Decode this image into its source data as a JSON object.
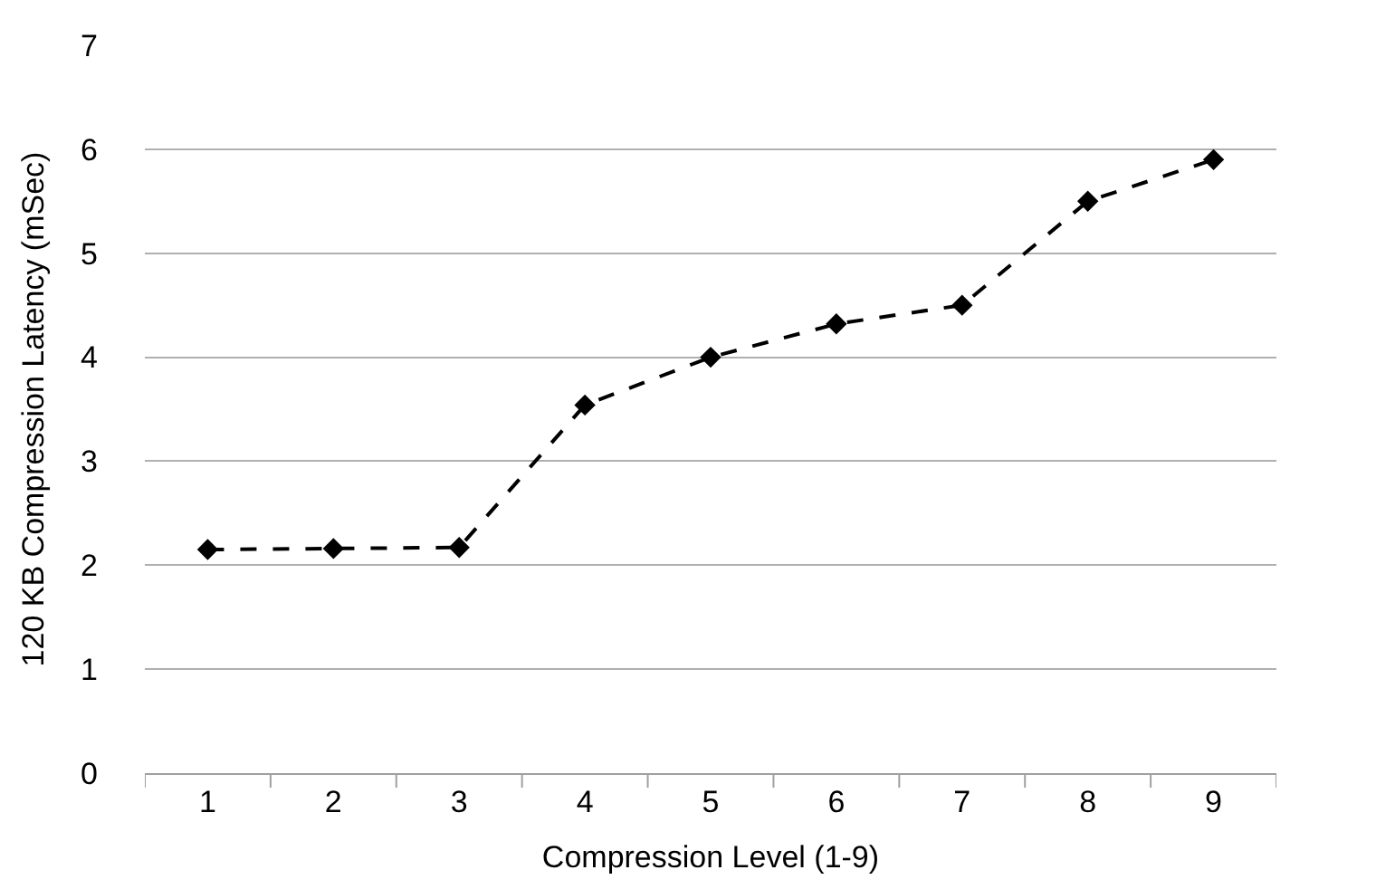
{
  "chart_data": {
    "type": "line",
    "xlabel": "Compression Level (1-9)",
    "ylabel": "120 KB Compression Latency (mSec)",
    "categories": [
      "1",
      "2",
      "3",
      "4",
      "5",
      "6",
      "7",
      "8",
      "9"
    ],
    "series": [
      {
        "color": "#000000",
        "values": [
          2.15,
          2.16,
          2.17,
          3.54,
          4.0,
          4.32,
          4.5,
          5.5,
          5.9
        ]
      }
    ],
    "ylim": [
      0,
      7
    ],
    "yticks": [
      0,
      1,
      2,
      3,
      4,
      5,
      6,
      7
    ],
    "grid": "y",
    "marker": "diamond",
    "line_style": "dashed",
    "legend": false
  }
}
